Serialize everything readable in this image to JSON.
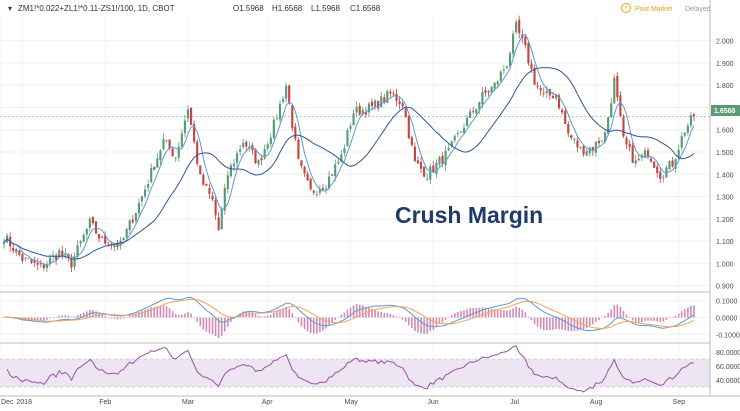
{
  "header": {
    "symbol": "ZM1!*0.022+ZL1!*0.11-ZS1!/100, 1D, CBOT",
    "open": "O1.5968",
    "high": "H1.6568",
    "low": "L1.5968",
    "close": "C1.6568",
    "post_market": "Post Market",
    "delayed": "Delayed"
  },
  "overlay_title": "Crush Margin",
  "colors": {
    "up": "#5b9a74",
    "down": "#c8443f",
    "ma_fast": "#5b9bd5",
    "ma_slow": "#2f5597",
    "macd_line": "#5b9bd5",
    "signal_line": "#f4a25a",
    "hist": "#d48ab2",
    "rsi": "#9b4fa6",
    "rsi_band": "#ede6f2",
    "price_tag": "#5b9a74",
    "title": "#1f3b68",
    "post_market": "#f39c12"
  },
  "chart_data": [
    {
      "type": "candlestick",
      "title": "Crush Margin",
      "x_tick_labels": [
        "Dec",
        "2018",
        "Feb",
        "Mar",
        "Apr",
        "May",
        "Jun",
        "Jul",
        "Aug",
        "Sep"
      ],
      "y_tick_labels": [
        "0.900",
        "1.000",
        "1.100",
        "1.200",
        "1.300",
        "1.400",
        "1.500",
        "1.600",
        "1.700",
        "1.800",
        "1.900",
        "2.000"
      ],
      "last_price": "1.6568",
      "ylim": [
        0.88,
        2.12
      ],
      "close_anchors": [
        [
          0,
          1.12
        ],
        [
          6,
          1.02
        ],
        [
          12,
          0.98
        ],
        [
          18,
          1.05
        ],
        [
          22,
          1.0
        ],
        [
          28,
          1.18
        ],
        [
          32,
          1.1
        ],
        [
          38,
          1.08
        ],
        [
          45,
          1.3
        ],
        [
          52,
          1.55
        ],
        [
          56,
          1.48
        ],
        [
          60,
          1.7
        ],
        [
          64,
          1.38
        ],
        [
          68,
          1.28
        ],
        [
          70,
          1.15
        ],
        [
          73,
          1.4
        ],
        [
          78,
          1.55
        ],
        [
          83,
          1.45
        ],
        [
          88,
          1.62
        ],
        [
          92,
          1.8
        ],
        [
          96,
          1.45
        ],
        [
          100,
          1.32
        ],
        [
          105,
          1.36
        ],
        [
          110,
          1.48
        ],
        [
          114,
          1.68
        ],
        [
          120,
          1.7
        ],
        [
          126,
          1.76
        ],
        [
          130,
          1.72
        ],
        [
          134,
          1.45
        ],
        [
          138,
          1.4
        ],
        [
          145,
          1.5
        ],
        [
          150,
          1.62
        ],
        [
          156,
          1.75
        ],
        [
          160,
          1.8
        ],
        [
          164,
          1.9
        ],
        [
          167,
          2.06
        ],
        [
          170,
          1.96
        ],
        [
          173,
          1.82
        ],
        [
          176,
          1.75
        ],
        [
          180,
          1.76
        ],
        [
          184,
          1.58
        ],
        [
          188,
          1.51
        ],
        [
          192,
          1.52
        ],
        [
          196,
          1.58
        ],
        [
          199,
          1.82
        ],
        [
          202,
          1.55
        ],
        [
          206,
          1.45
        ],
        [
          210,
          1.5
        ],
        [
          214,
          1.4
        ],
        [
          218,
          1.45
        ],
        [
          222,
          1.6
        ],
        [
          225,
          1.66
        ]
      ],
      "series": [
        {
          "name": "MA fast",
          "kind": "ma",
          "period": 5
        },
        {
          "name": "MA slow",
          "kind": "ma",
          "period": 20
        }
      ]
    },
    {
      "type": "macd",
      "y_tick_labels": [
        "0.1000",
        "0.0000",
        "-0.1000"
      ],
      "ylim": [
        -0.14,
        0.14
      ],
      "series": [
        "MACD",
        "Signal",
        "Histogram"
      ]
    },
    {
      "type": "rsi",
      "y_tick_labels": [
        "80.0000",
        "60.0000",
        "40.0000"
      ],
      "ylim": [
        20,
        90
      ],
      "band": [
        30,
        70
      ]
    }
  ]
}
